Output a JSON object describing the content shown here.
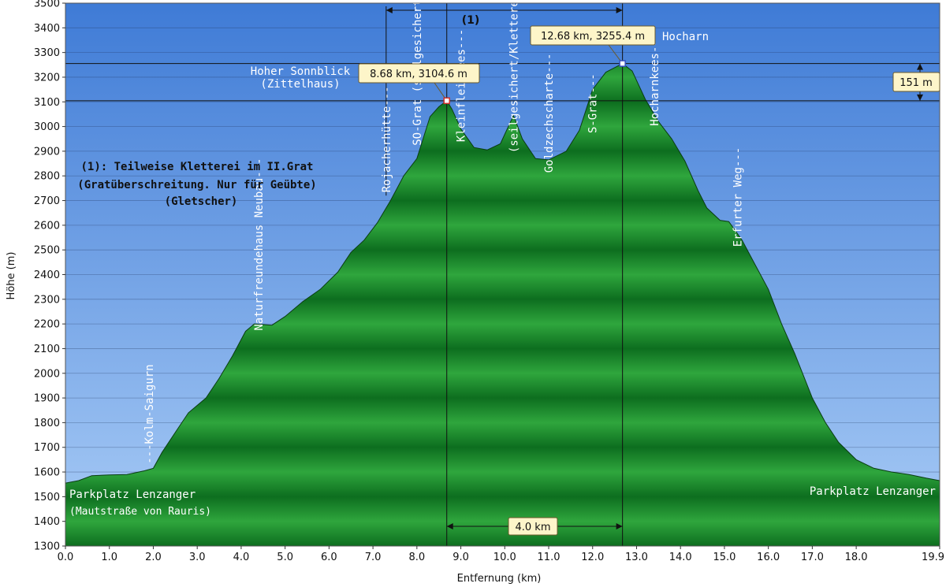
{
  "chart_data": {
    "type": "area",
    "xlabel": "Entfernung   (km)",
    "ylabel": "Höhe (m)",
    "xlim": [
      0,
      19.9
    ],
    "ylim": [
      1300,
      3500
    ],
    "x_ticks": [
      "0.0",
      "1.0",
      "2.0",
      "3.0",
      "4.0",
      "5.0",
      "6.0",
      "7.0",
      "8.0",
      "9.0",
      "10.0",
      "11.0",
      "12.0",
      "13.0",
      "14.0",
      "15.0",
      "16.0",
      "17.0",
      "18.0",
      "19.9"
    ],
    "x_tick_values": [
      0,
      1,
      2,
      3,
      4,
      5,
      6,
      7,
      8,
      9,
      10,
      11,
      12,
      13,
      14,
      15,
      16,
      17,
      18,
      19.9
    ],
    "y_ticks": [
      1300,
      1400,
      1500,
      1600,
      1700,
      1800,
      1900,
      2000,
      2100,
      2200,
      2300,
      2400,
      2500,
      2600,
      2700,
      2800,
      2900,
      3000,
      3100,
      3200,
      3300,
      3400,
      3500
    ],
    "colors": {
      "sky_top": "#3f7bd6",
      "sky_bottom": "#9dc3f4",
      "terrain_dark": "#0d6e1f",
      "terrain_light": "#2fa63d",
      "callout_bg": "#fdf5c9"
    },
    "profile": [
      [
        0.0,
        1555
      ],
      [
        0.3,
        1565
      ],
      [
        0.6,
        1585
      ],
      [
        1.0,
        1588
      ],
      [
        1.4,
        1590
      ],
      [
        1.8,
        1605
      ],
      [
        2.0,
        1615
      ],
      [
        2.2,
        1680
      ],
      [
        2.5,
        1760
      ],
      [
        2.8,
        1840
      ],
      [
        3.2,
        1900
      ],
      [
        3.5,
        1980
      ],
      [
        3.8,
        2070
      ],
      [
        4.1,
        2170
      ],
      [
        4.3,
        2200
      ],
      [
        4.7,
        2195
      ],
      [
        5.0,
        2230
      ],
      [
        5.4,
        2290
      ],
      [
        5.8,
        2340
      ],
      [
        6.2,
        2410
      ],
      [
        6.5,
        2490
      ],
      [
        6.8,
        2540
      ],
      [
        7.1,
        2610
      ],
      [
        7.4,
        2700
      ],
      [
        7.7,
        2800
      ],
      [
        8.0,
        2870
      ],
      [
        8.3,
        3040
      ],
      [
        8.5,
        3080
      ],
      [
        8.68,
        3105
      ],
      [
        8.8,
        3070
      ],
      [
        9.0,
        2990
      ],
      [
        9.3,
        2915
      ],
      [
        9.6,
        2905
      ],
      [
        9.9,
        2930
      ],
      [
        10.2,
        3045
      ],
      [
        10.4,
        2950
      ],
      [
        10.7,
        2870
      ],
      [
        11.0,
        2865
      ],
      [
        11.4,
        2900
      ],
      [
        11.7,
        2985
      ],
      [
        12.0,
        3150
      ],
      [
        12.3,
        3220
      ],
      [
        12.68,
        3255
      ],
      [
        12.9,
        3225
      ],
      [
        13.2,
        3110
      ],
      [
        13.5,
        3020
      ],
      [
        13.8,
        2950
      ],
      [
        14.1,
        2860
      ],
      [
        14.4,
        2740
      ],
      [
        14.6,
        2670
      ],
      [
        14.9,
        2620
      ],
      [
        15.1,
        2615
      ],
      [
        15.4,
        2540
      ],
      [
        15.7,
        2440
      ],
      [
        16.0,
        2340
      ],
      [
        16.3,
        2200
      ],
      [
        16.6,
        2080
      ],
      [
        17.0,
        1900
      ],
      [
        17.3,
        1800
      ],
      [
        17.6,
        1720
      ],
      [
        18.0,
        1650
      ],
      [
        18.4,
        1615
      ],
      [
        18.8,
        1600
      ],
      [
        19.2,
        1590
      ],
      [
        19.6,
        1575
      ],
      [
        19.9,
        1565
      ]
    ],
    "waypoints": [
      {
        "label": "---Kolm-Saigurn",
        "x": 1.9,
        "y": 1620
      },
      {
        "label": "Naturfreundehaus Neubau---",
        "x": 4.4,
        "y": 2160
      },
      {
        "label": "Rojacherhütte---",
        "x": 7.3,
        "y": 2720
      },
      {
        "label": "SO-Grat (seilgesichert)---",
        "x": 8.0,
        "y": 2910
      },
      {
        "label": "Kleinfleißkees---",
        "x": 9.0,
        "y": 2925
      },
      {
        "label": "(seilgesichert/Kletterei) Goldzechkopf---",
        "x": 10.2,
        "y": 2880
      },
      {
        "label": "Goldzechscharte---",
        "x": 11.0,
        "y": 2800
      },
      {
        "label": "S-Grat---",
        "x": 12.0,
        "y": 2960
      },
      {
        "label": "Hocharnkees---",
        "x": 13.4,
        "y": 2990
      },
      {
        "label": "Erfurter Weg---",
        "x": 15.3,
        "y": 2500
      }
    ],
    "peaks": [
      {
        "callout": "8.68 km, 3104.6 m",
        "x": 8.68,
        "y": 3104.6,
        "name_line1": "Hoher Sonnblick",
        "name_line2": "(Zittelhaus)"
      },
      {
        "callout": "12.68 km, 3255.4 m",
        "x": 12.68,
        "y": 3255.4,
        "name_line1": "Hocharn",
        "name_line2": ""
      }
    ],
    "section_marker": {
      "label": "(1)",
      "x_start": 7.3,
      "x_end": 12.68
    },
    "distance_marker": {
      "label": "4.0 km",
      "x_start": 8.68,
      "x_end": 12.68
    },
    "height_marker": {
      "label": "151 m",
      "y_low": 3104.6,
      "y_high": 3255.4
    },
    "note_lines": [
      "(1): Teilweise Kletterei im II.Grat",
      "(Gratüberschreitung. Nur für Geübte)",
      "(Gletscher)"
    ],
    "start_label": {
      "line1": "Parkplatz Lenzanger",
      "line2": "(Mautstraße von Rauris)"
    },
    "end_label": {
      "line1": "Parkplatz Lenzanger"
    }
  }
}
